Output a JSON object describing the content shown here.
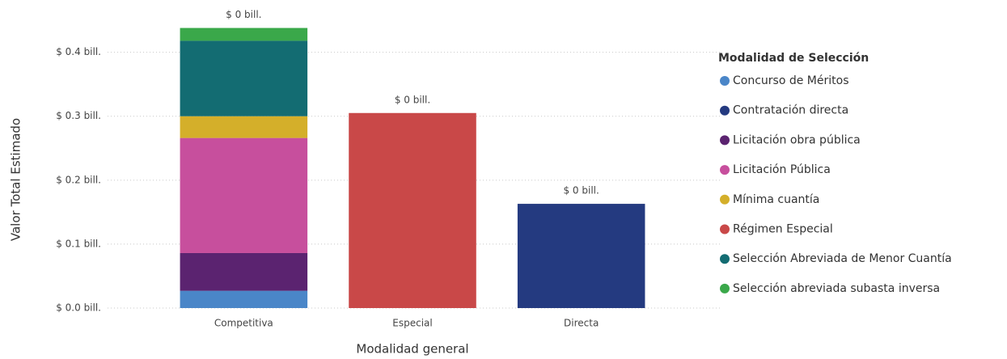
{
  "chart_data": {
    "type": "stacked_bar",
    "x_label": "Modalidad general",
    "y_label": "Valor Total Estimado",
    "legend_title": "Modalidad de Selección",
    "legend_position": "right",
    "categories": [
      "Competitiva",
      "Especial",
      "Directa"
    ],
    "total_labels": [
      "$ 0 bill.",
      "$ 0 bill.",
      "$ 0 bill."
    ],
    "series": [
      {
        "name": "Concurso de Méritos",
        "color": "#4a86c8",
        "values": [
          0.027,
          null,
          null
        ]
      },
      {
        "name": "Contratación directa",
        "color": "#243a80",
        "values": [
          null,
          null,
          0.163
        ]
      },
      {
        "name": "Licitación obra pública",
        "color": "#5b2370",
        "values": [
          0.059,
          null,
          null
        ]
      },
      {
        "name": "Licitación Pública",
        "color": "#c74f9d",
        "values": [
          0.18,
          null,
          null
        ]
      },
      {
        "name": "Mínima cuantía",
        "color": "#d4af2a",
        "values": [
          0.034,
          null,
          null
        ]
      },
      {
        "name": "Régimen Especial",
        "color": "#c94848",
        "values": [
          null,
          0.305,
          null
        ]
      },
      {
        "name": "Selección Abreviada de Menor Cuantía",
        "color": "#136c72",
        "values": [
          0.118,
          null,
          null
        ]
      },
      {
        "name": "Selección abreviada subasta inversa",
        "color": "#3aa84a",
        "values": [
          0.02,
          null,
          null
        ]
      }
    ],
    "ylim": [
      0,
      0.44
    ],
    "yticks": [
      {
        "value": 0,
        "label": "$ 0.0 bill."
      },
      {
        "value": 0.1,
        "label": "$ 0.1 bill."
      },
      {
        "value": 0.2,
        "label": "$ 0.2 bill."
      },
      {
        "value": 0.3,
        "label": "$ 0.3 bill."
      },
      {
        "value": 0.4,
        "label": "$ 0.4 bill."
      }
    ],
    "grid": true
  }
}
